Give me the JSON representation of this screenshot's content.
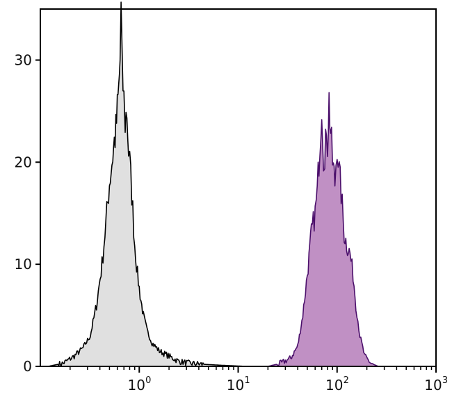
{
  "chart_data": {
    "type": "area",
    "title": "",
    "xlabel": "",
    "ylabel": "",
    "x_scale": "log",
    "xlim": [
      0.1,
      1000
    ],
    "ylim": [
      0,
      35
    ],
    "y_ticks": [
      0,
      10,
      20,
      30
    ],
    "x_ticks": [
      {
        "value": 1,
        "base": "10",
        "exp": "0"
      },
      {
        "value": 10,
        "base": "10",
        "exp": "1"
      },
      {
        "value": 100,
        "base": "10",
        "exp": "2"
      },
      {
        "value": 1000,
        "base": "10",
        "exp": "3"
      }
    ],
    "grid": false,
    "legend": "none",
    "series": [
      {
        "color": "#000000",
        "fill": "#e0e0e0",
        "x": [
          0.12,
          0.17,
          0.22,
          0.27,
          0.32,
          0.37,
          0.42,
          0.46,
          0.5,
          0.53,
          0.56,
          0.58,
          0.6,
          0.62,
          0.64,
          0.655,
          0.67,
          0.7,
          0.72,
          0.75,
          0.78,
          0.8,
          0.84,
          0.9,
          0.96,
          1.02,
          1.1,
          1.2,
          1.35,
          1.6,
          2.0,
          2.5,
          3.2,
          4.5,
          7.0,
          12.0
        ],
        "y": [
          0,
          0.3,
          1,
          1.8,
          3,
          6,
          10,
          14,
          18,
          20,
          22,
          23,
          25,
          27,
          30,
          34.5,
          29,
          26,
          24,
          25,
          21,
          20,
          17,
          12,
          9,
          7,
          5,
          3.5,
          2.3,
          1.5,
          1,
          0.5,
          0.3,
          0.2,
          0.1,
          0
        ]
      },
      {
        "color": "#4b0f6b",
        "fill": "#c090c4",
        "x": [
          20,
          27,
          34,
          40,
          45,
          50,
          55,
          60,
          63,
          67,
          70,
          73,
          75,
          78,
          80,
          83,
          86,
          90,
          95,
          100,
          105,
          110,
          118,
          125,
          135,
          145,
          155,
          170,
          190,
          220,
          260
        ],
        "y": [
          0,
          0.3,
          0.8,
          2,
          5,
          9,
          13,
          15,
          17,
          22,
          26,
          21,
          19,
          24,
          22,
          26,
          23,
          20,
          18,
          22,
          19,
          17,
          13,
          12,
          11,
          9,
          6,
          3,
          1,
          0.3,
          0
        ]
      }
    ]
  }
}
